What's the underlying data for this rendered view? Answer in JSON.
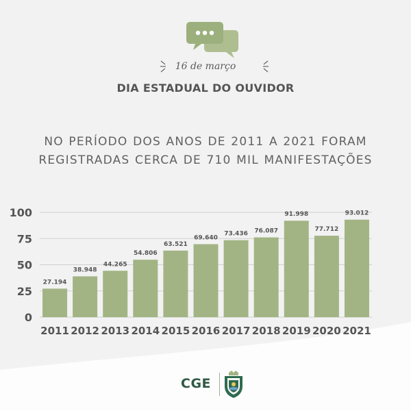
{
  "header": {
    "date": "16 de março",
    "event_title": "DIA ESTADUAL DO OUVIDOR",
    "icon": "chat-bubbles-icon"
  },
  "headline": {
    "line1": "NO PERÍODO DOS ANOS DE 2011 A 2021 FORAM",
    "line2": "REGISTRADAS CERCA DE 710 MIL MANIFESTAÇÕES"
  },
  "footer": {
    "logo_text": "CGE",
    "crest": "ceara-state-crest-icon"
  },
  "colors": {
    "bar": "#a2b484",
    "accent": "#9cb289",
    "text": "#555555",
    "background": "#f2f2f2"
  },
  "chart_data": {
    "type": "bar",
    "categories": [
      "2011",
      "2012",
      "2013",
      "2014",
      "2015",
      "2016",
      "2017",
      "2018",
      "2019",
      "2020",
      "2021"
    ],
    "values": [
      27.194,
      38.948,
      44.265,
      54.806,
      63.521,
      69.64,
      73.436,
      76.087,
      91.998,
      77.712,
      93.012
    ],
    "data_labels": [
      "27.194",
      "38.948",
      "44.265",
      "54.806",
      "63.521",
      "69.640",
      "73.436",
      "76.087",
      "91.998",
      "77.712",
      "93.012"
    ],
    "yticks": [
      "0",
      "25",
      "50",
      "75",
      "100"
    ],
    "ylim": [
      0,
      100
    ],
    "grid": true,
    "title": "",
    "xlabel": "",
    "ylabel": ""
  }
}
